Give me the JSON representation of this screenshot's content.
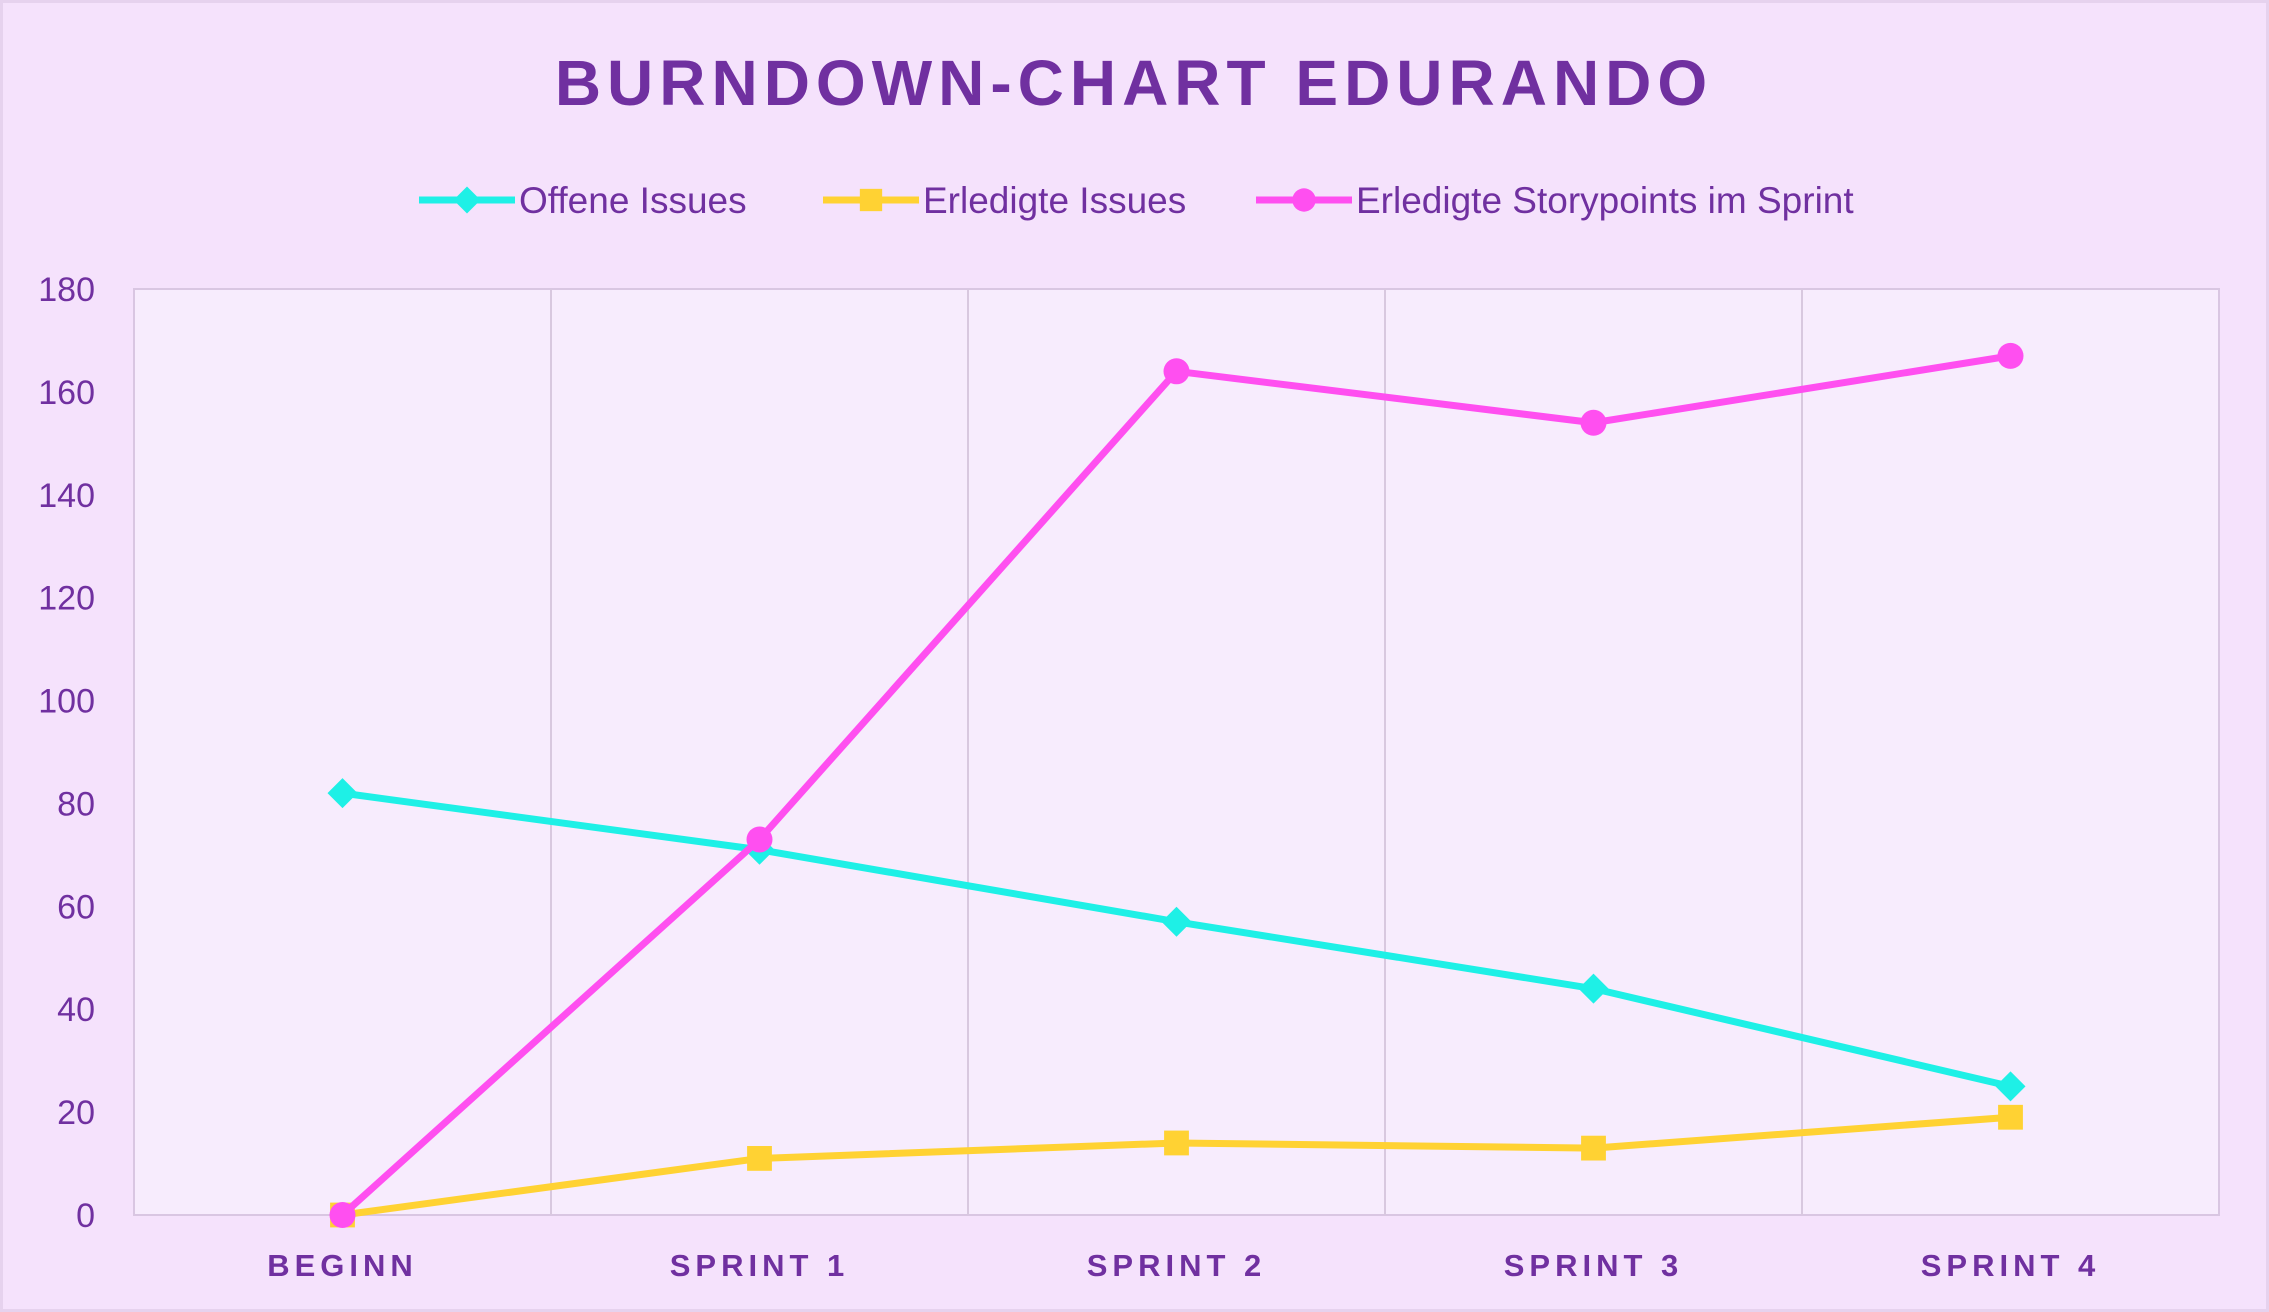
{
  "chart_data": {
    "type": "line",
    "title": "BURNDOWN-CHART EDURANDO",
    "categories": [
      "BEGINN",
      "SPRINT 1",
      "SPRINT 2",
      "SPRINT 3",
      "SPRINT 4"
    ],
    "series": [
      {
        "name": "Offene Issues",
        "values": [
          82,
          71,
          57,
          44,
          25
        ],
        "color": "#1ef0e6",
        "marker": "diamond"
      },
      {
        "name": "Erledigte Issues",
        "values": [
          0,
          11,
          14,
          13,
          19
        ],
        "color": "#ffd233",
        "marker": "square"
      },
      {
        "name": "Erledigte Storypoints im Sprint",
        "values": [
          0,
          73,
          164,
          154,
          167
        ],
        "color": "#ff4ff0",
        "marker": "circle"
      }
    ],
    "ylim": [
      0,
      180
    ],
    "yticks": [
      "0",
      "20",
      "40",
      "60",
      "80",
      "100",
      "120",
      "140",
      "160",
      "180"
    ],
    "xlabel": "",
    "ylabel": "",
    "grid": "vertical",
    "legend": "top"
  }
}
